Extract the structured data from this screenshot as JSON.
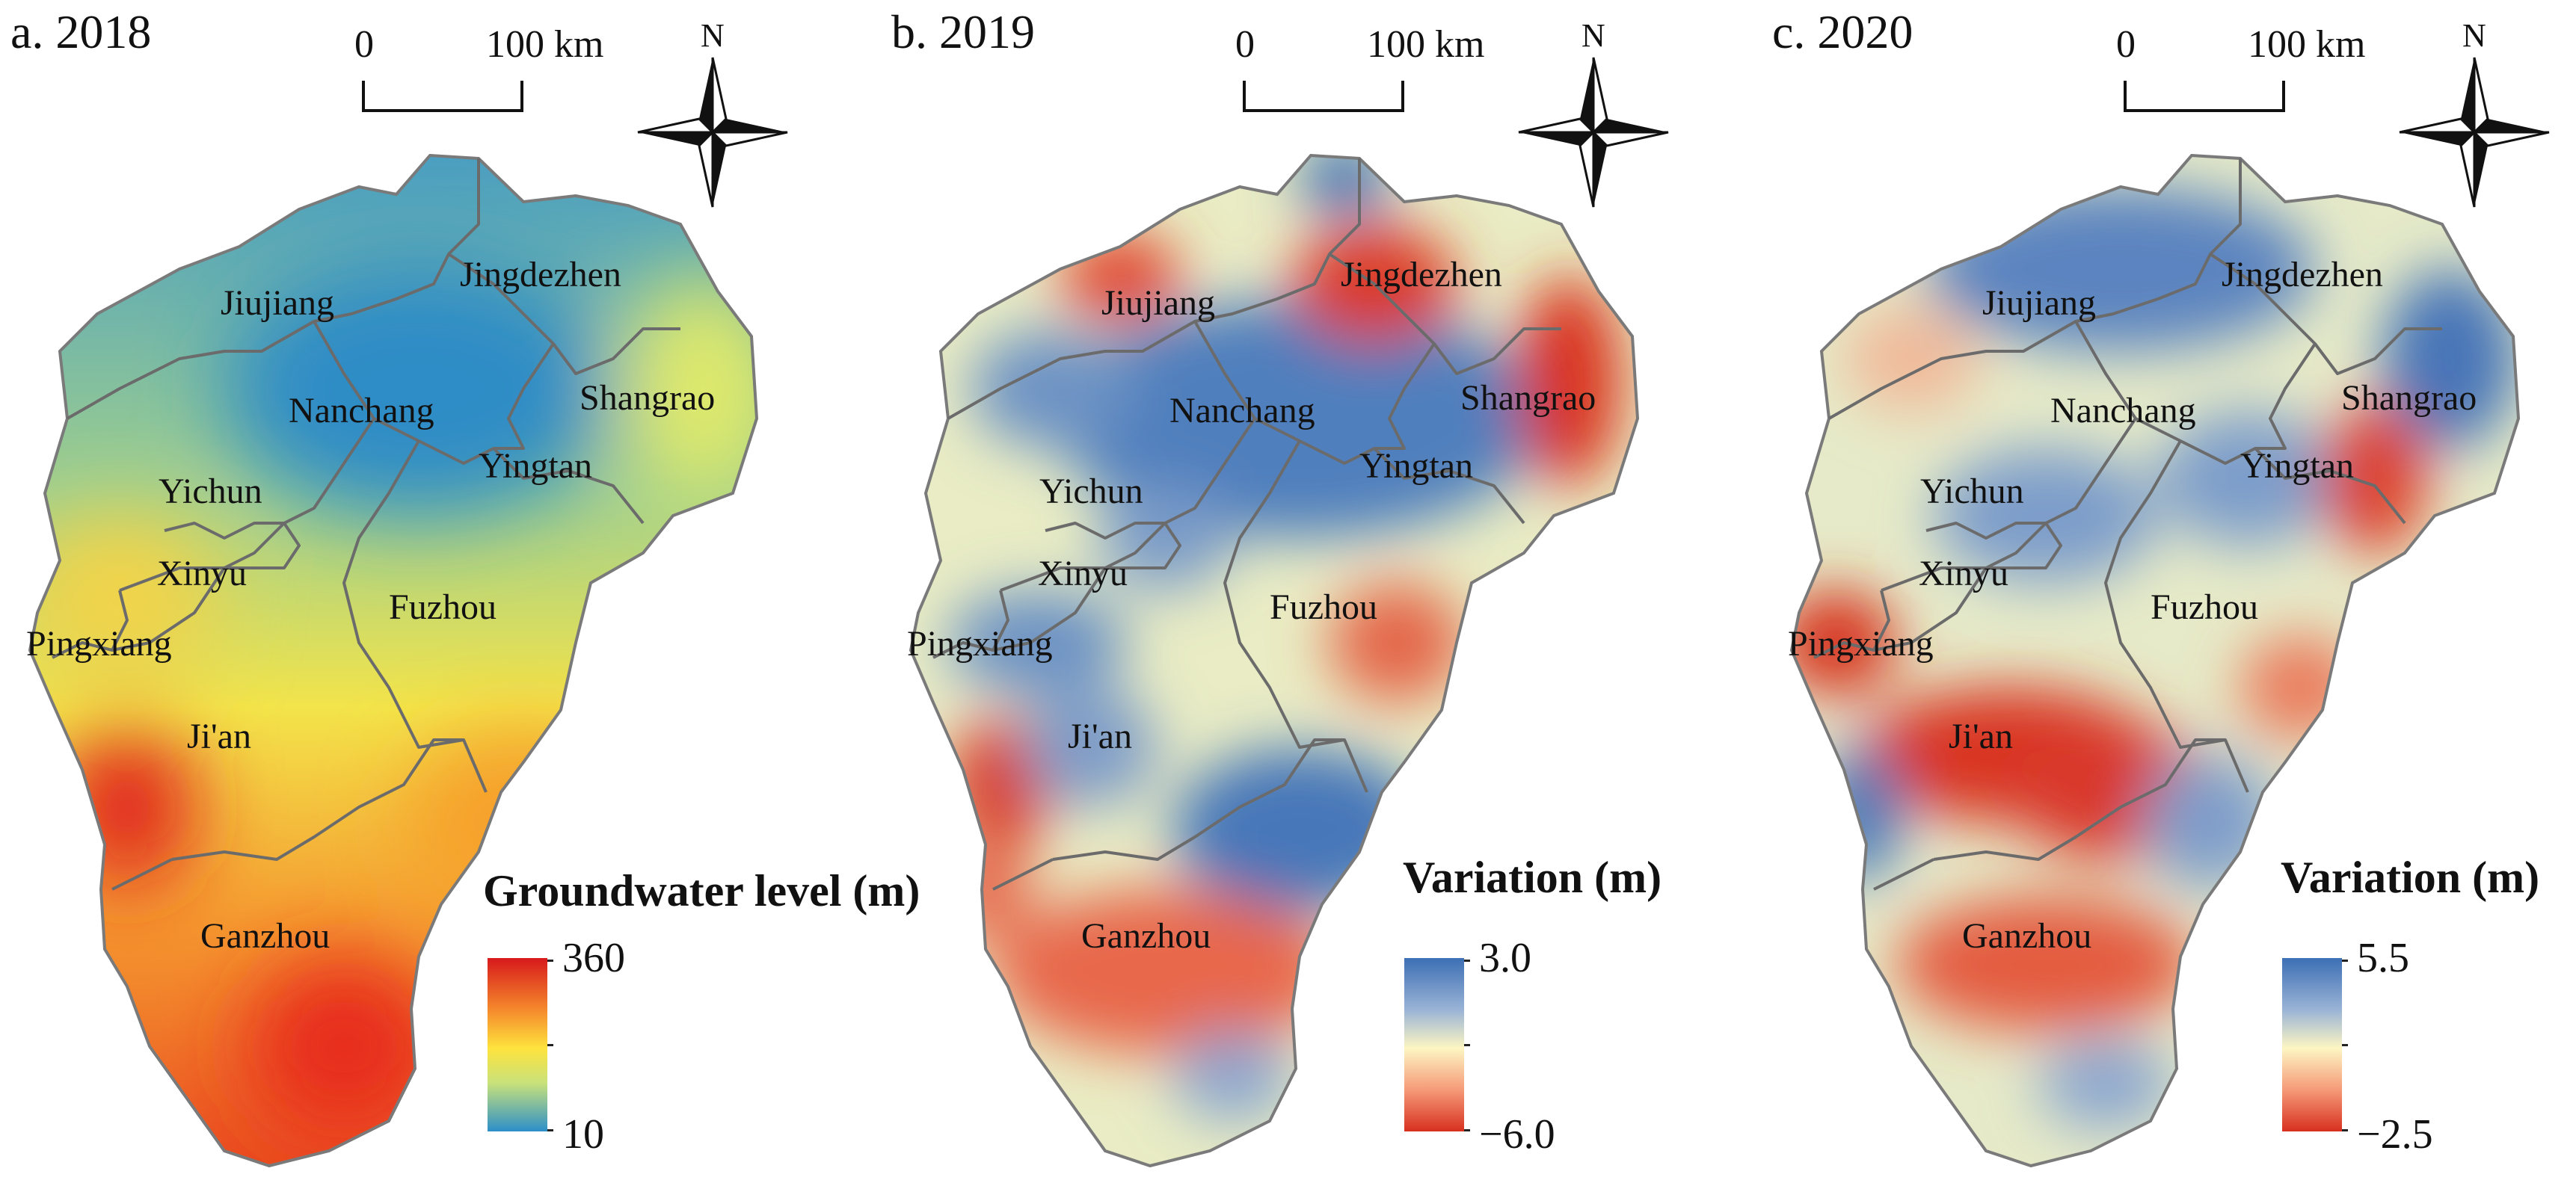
{
  "panels": [
    {
      "id": "a",
      "title": "a. 2018",
      "legend": {
        "title": "Groundwater level (m)",
        "max_label": "360",
        "min_label": "10",
        "ramp": "level"
      },
      "cities": [
        {
          "key": "jiujiang",
          "name": "Jiujiang"
        },
        {
          "key": "jingdezhen",
          "name": "Jingdezhen"
        },
        {
          "key": "nanchang",
          "name": "Nanchang"
        },
        {
          "key": "shangrao",
          "name": "Shangrao"
        },
        {
          "key": "yingtan",
          "name": "Yingtan"
        },
        {
          "key": "yichun",
          "name": "Yichun"
        },
        {
          "key": "xinyu",
          "name": "Xinyu"
        },
        {
          "key": "fuzhou",
          "name": "Fuzhou"
        },
        {
          "key": "pingxiang",
          "name": "Pingxiang"
        },
        {
          "key": "jian",
          "name": "Ji'an"
        },
        {
          "key": "ganzhou",
          "name": "Ganzhou"
        }
      ]
    },
    {
      "id": "b",
      "title": "b. 2019",
      "legend": {
        "title": "Variation (m)",
        "max_label": "3.0",
        "min_label": "−6.0",
        "ramp": "variation"
      },
      "cities": [
        {
          "key": "jiujiang",
          "name": "Jiujiang"
        },
        {
          "key": "jingdezhen",
          "name": "Jingdezhen"
        },
        {
          "key": "nanchang",
          "name": "Nanchang"
        },
        {
          "key": "shangrao",
          "name": "Shangrao"
        },
        {
          "key": "yingtan",
          "name": "Yingtan"
        },
        {
          "key": "yichun",
          "name": "Yichun"
        },
        {
          "key": "xinyu",
          "name": "Xinyu"
        },
        {
          "key": "fuzhou",
          "name": "Fuzhou"
        },
        {
          "key": "pingxiang",
          "name": "Pingxiang"
        },
        {
          "key": "jian",
          "name": "Ji'an"
        },
        {
          "key": "ganzhou",
          "name": "Ganzhou"
        }
      ]
    },
    {
      "id": "c",
      "title": "c. 2020",
      "legend": {
        "title": "Variation (m)",
        "max_label": "5.5",
        "min_label": "−2.5",
        "ramp": "variation"
      },
      "cities": [
        {
          "key": "jiujiang",
          "name": "Jiujiang"
        },
        {
          "key": "jingdezhen",
          "name": "Jingdezhen"
        },
        {
          "key": "nanchang",
          "name": "Nanchang"
        },
        {
          "key": "shangrao",
          "name": "Shangrao"
        },
        {
          "key": "yingtan",
          "name": "Yingtan"
        },
        {
          "key": "yichun",
          "name": "Yichun"
        },
        {
          "key": "xinyu",
          "name": "Xinyu"
        },
        {
          "key": "fuzhou",
          "name": "Fuzhou"
        },
        {
          "key": "pingxiang",
          "name": "Pingxiang"
        },
        {
          "key": "jian",
          "name": "Ji'an"
        },
        {
          "key": "ganzhou",
          "name": "Ganzhou"
        }
      ]
    }
  ],
  "scale_bar": {
    "zero_label": "0",
    "distance_label": "100 km"
  },
  "north_arrow": {
    "letter": "N"
  },
  "colors": {
    "boundary": "#6b6b6b",
    "level_ramp": [
      "#d7191c",
      "#f58a2c",
      "#fee33d",
      "#c9e27a",
      "#2c8fc9"
    ],
    "variation_ramp": [
      "#d7301f",
      "#f59a78",
      "#fdf6c3",
      "#9ab4d6",
      "#3d6fb5"
    ]
  }
}
